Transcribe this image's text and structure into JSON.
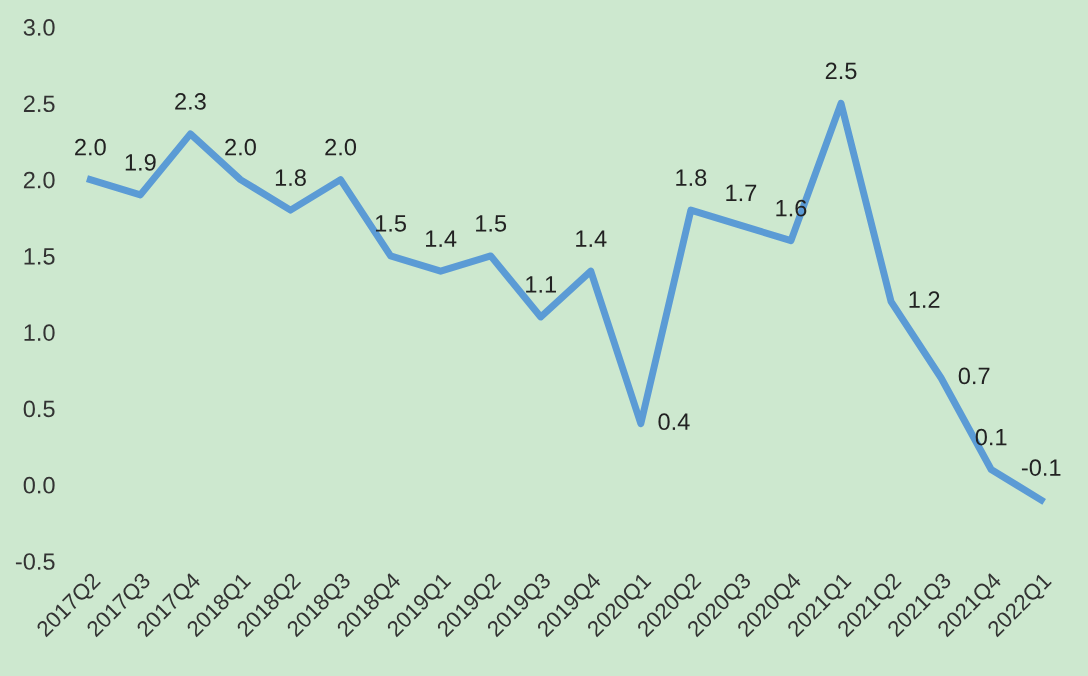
{
  "chart_data": {
    "type": "line",
    "categories": [
      "2017Q2",
      "2017Q3",
      "2017Q4",
      "2018Q1",
      "2018Q2",
      "2018Q3",
      "2018Q4",
      "2019Q1",
      "2019Q2",
      "2019Q3",
      "2019Q4",
      "2020Q1",
      "2020Q2",
      "2020Q3",
      "2020Q4",
      "2021Q1",
      "2021Q2",
      "2021Q3",
      "2021Q4",
      "2022Q1"
    ],
    "series": [
      {
        "color": "#5b9bd5",
        "values": [
          2.0,
          1.9,
          2.3,
          2.0,
          1.8,
          2.0,
          1.5,
          1.4,
          1.5,
          1.1,
          1.4,
          0.4,
          1.8,
          1.7,
          1.6,
          2.5,
          1.2,
          0.7,
          0.1,
          -0.1
        ],
        "value_labels": [
          "2.0",
          "1.9",
          "2.3",
          "2.0",
          "1.8",
          "2.0",
          "1.5",
          "1.4",
          "1.5",
          "1.1",
          "1.4",
          "0.4",
          "1.8",
          "1.7",
          "1.6",
          "2.5",
          "1.2",
          "0.7",
          "0.1",
          "-0.1"
        ]
      }
    ],
    "ylim": [
      -0.5,
      3.0
    ],
    "yticks": [
      {
        "value": -0.5,
        "label": "-0.5"
      },
      {
        "value": 0,
        "label": "0.0"
      },
      {
        "value": 0.5,
        "label": "0.5"
      },
      {
        "value": 1,
        "label": "1.0"
      },
      {
        "value": 1.5,
        "label": "1.5"
      },
      {
        "value": 2,
        "label": "2.0"
      },
      {
        "value": 2.5,
        "label": "2.5"
      },
      {
        "value": 3,
        "label": "3.0"
      }
    ],
    "grid": false,
    "legend": false,
    "marker": "none",
    "line_style": "solid"
  }
}
